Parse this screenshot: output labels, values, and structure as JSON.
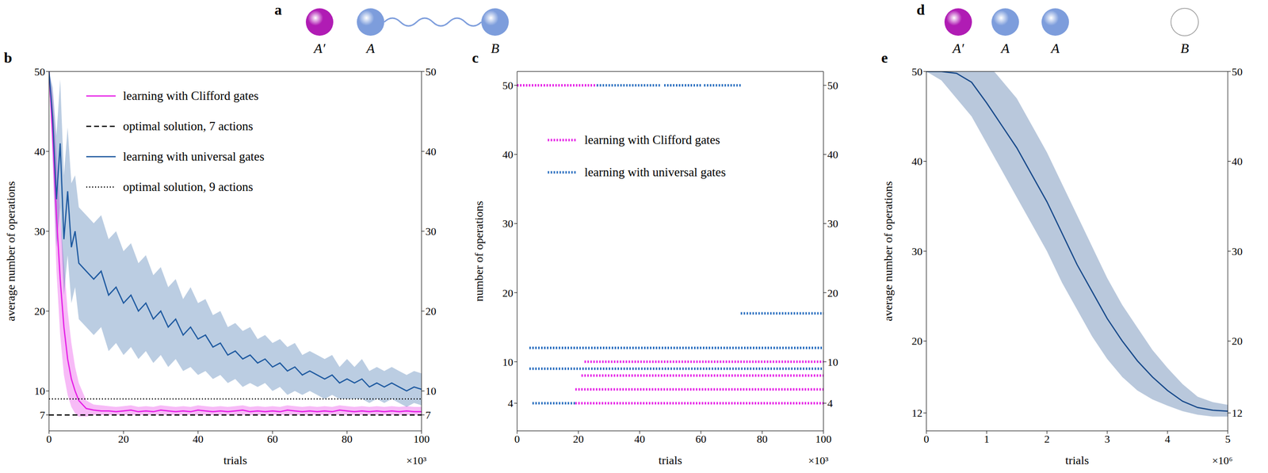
{
  "diagrams": [
    {
      "panel": "a",
      "nodes": [
        {
          "label": "A′",
          "color": "#b01cb4"
        },
        {
          "label": "A",
          "color": "#7d9ddc"
        },
        {
          "label": "B",
          "color": "#7d9ddc"
        }
      ],
      "links": [
        [
          1,
          2
        ]
      ]
    },
    {
      "panel": "d",
      "nodes": [
        {
          "label": "A′",
          "color": "#b01cb4"
        },
        {
          "label": "A",
          "color": "#7d9ddc"
        },
        {
          "label": "A",
          "color": "#7d9ddc"
        },
        {
          "label": "B",
          "color": "#ffffff"
        }
      ],
      "links": []
    }
  ],
  "chart_data": [
    {
      "panel": "b",
      "type": "line",
      "x_label": "trials",
      "x_multiplier": "×10³",
      "y_label": "average number of operations",
      "xlim": [
        0,
        100
      ],
      "xticks": [
        0,
        20,
        40,
        60,
        80,
        100
      ],
      "ylim": [
        5,
        50
      ],
      "yticks": [
        7,
        10,
        20,
        30,
        40,
        50
      ],
      "legend": "upper center",
      "x": [
        0,
        1,
        2,
        3,
        4,
        5,
        6,
        7,
        8,
        10,
        12,
        14,
        16,
        18,
        20,
        22,
        24,
        26,
        28,
        30,
        32,
        34,
        36,
        38,
        40,
        42,
        44,
        46,
        48,
        50,
        52,
        54,
        56,
        58,
        60,
        62,
        64,
        66,
        68,
        70,
        72,
        74,
        76,
        78,
        80,
        82,
        84,
        86,
        88,
        90,
        92,
        94,
        96,
        98,
        100
      ],
      "series": [
        {
          "name": "learning with Clifford gates",
          "color": "#e61ee6",
          "line_style": "solid",
          "values": [
            50,
            42,
            32,
            24,
            18,
            14,
            11.5,
            10,
            8.8,
            7.8,
            7.6,
            7.5,
            7.5,
            7.4,
            7.5,
            7.6,
            7.4,
            7.5,
            7.4,
            7.6,
            7.5,
            7.4,
            7.5,
            7.4,
            7.6,
            7.5,
            7.4,
            7.5,
            7.4,
            7.5,
            7.6,
            7.4,
            7.5,
            7.4,
            7.5,
            7.4,
            7.6,
            7.5,
            7.4,
            7.5,
            7.4,
            7.5,
            7.4,
            7.6,
            7.5,
            7.4,
            7.5,
            7.4,
            7.5,
            7.4,
            7.5,
            7.4,
            7.5,
            7.4,
            7.4
          ],
          "lower": [
            50,
            38,
            25,
            17,
            12,
            9.5,
            8,
            7.2,
            6.8,
            6.8,
            7,
            7,
            7,
            7,
            7,
            7,
            7,
            7,
            7,
            7,
            7,
            7,
            7,
            7,
            7,
            7,
            7,
            7,
            7,
            7,
            7,
            7,
            7,
            7,
            7,
            7,
            7,
            7,
            7,
            7,
            7,
            7,
            7,
            7,
            7,
            7,
            7,
            7,
            7,
            7,
            7,
            7,
            7,
            7,
            7
          ],
          "upper": [
            50,
            47,
            40,
            32,
            26,
            20,
            16,
            13,
            11,
            8.8,
            8.3,
            8.2,
            8.1,
            8,
            8.1,
            8.2,
            8,
            8.1,
            8,
            8.2,
            8.1,
            8,
            8.1,
            8,
            8.2,
            8.1,
            8,
            8.1,
            8,
            8.1,
            8.2,
            8,
            8.1,
            8,
            8.1,
            8,
            8.2,
            8.1,
            8,
            8.1,
            8,
            8.1,
            8,
            8.2,
            8.1,
            8,
            8.1,
            8,
            8.1,
            8,
            8.1,
            8,
            8.1,
            8,
            8
          ]
        },
        {
          "name": "optimal solution, 7 actions",
          "type": "reference",
          "y": 7,
          "color": "#000000",
          "line_style": "dashed"
        },
        {
          "name": "learning with universal gates",
          "color": "#1f5aa0",
          "line_style": "solid",
          "values": [
            50,
            44,
            34,
            41,
            29,
            35,
            28,
            30,
            26,
            25,
            24,
            25,
            22,
            23,
            21,
            22,
            20,
            21,
            19,
            20,
            18,
            19,
            17,
            18,
            16.5,
            17,
            15.5,
            16,
            14.5,
            15,
            14,
            14.5,
            13.5,
            14,
            13,
            13.5,
            12.5,
            13,
            12,
            12.5,
            12,
            11.5,
            12,
            11,
            11.5,
            11,
            11.5,
            10.5,
            11,
            10.5,
            11,
            10.5,
            10,
            10.5,
            10.2
          ],
          "lower": [
            50,
            40,
            28,
            33,
            22,
            27,
            21,
            23,
            19,
            18,
            17,
            18,
            15,
            16,
            14.5,
            15.5,
            14,
            15,
            13.5,
            14.5,
            13,
            14,
            12.5,
            13,
            12,
            12.5,
            11.5,
            12,
            11,
            11.5,
            10.5,
            11,
            10.5,
            11,
            10,
            10.5,
            9.5,
            10,
            9.5,
            10,
            9.5,
            9,
            9.5,
            9,
            9,
            9,
            9,
            8.5,
            9,
            8.5,
            9,
            8.5,
            8,
            8.5,
            8.2
          ],
          "upper": [
            50,
            48,
            42,
            49,
            37,
            43,
            36,
            37,
            33,
            32,
            31,
            32,
            29,
            30,
            27.5,
            28.5,
            26,
            27,
            24.5,
            25.5,
            23,
            24,
            21.5,
            23,
            21,
            21.5,
            19.5,
            20,
            18,
            18.5,
            17.5,
            18,
            16.5,
            17,
            16,
            16.5,
            15.5,
            16,
            14.5,
            15,
            14.5,
            14,
            14.5,
            13,
            14,
            13,
            14,
            12.5,
            13,
            12.5,
            13,
            12.5,
            12,
            12.5,
            12.2
          ]
        },
        {
          "name": "optimal solution, 9 actions",
          "type": "reference",
          "y": 9,
          "color": "#000000",
          "line_style": "dotted"
        }
      ]
    },
    {
      "panel": "c",
      "type": "scatter",
      "x_label": "trials",
      "x_multiplier": "×10³",
      "y_label": "number of operations",
      "xlim": [
        0,
        100
      ],
      "xticks": [
        0,
        20,
        40,
        60,
        80,
        100
      ],
      "ylim": [
        0,
        52
      ],
      "yticks": [
        4,
        10,
        20,
        30,
        40,
        50
      ],
      "legend": "upper center",
      "series": [
        {
          "name": "learning with Clifford gates",
          "color": "#e61ee6",
          "marker": "dot",
          "segments": [
            {
              "y": 50,
              "x": [
                0,
                26
              ]
            },
            {
              "y": 10,
              "x": [
                22,
                100
              ]
            },
            {
              "y": 8,
              "x": [
                21,
                100
              ]
            },
            {
              "y": 6,
              "x": [
                19,
                100
              ]
            },
            {
              "y": 4,
              "x": [
                19,
                100
              ]
            }
          ]
        },
        {
          "name": "learning with universal gates",
          "color": "#2a6fc0",
          "marker": "dot",
          "segments": [
            {
              "y": 50,
              "x": [
                26,
                47
              ]
            },
            {
              "y": 50,
              "x": [
                48,
                60
              ]
            },
            {
              "y": 50,
              "x": [
                61,
                73
              ]
            },
            {
              "y": 17,
              "x": [
                73,
                100
              ]
            },
            {
              "y": 12,
              "x": [
                4,
                100
              ]
            },
            {
              "y": 9,
              "x": [
                4,
                100
              ]
            },
            {
              "y": 4,
              "x": [
                5,
                19
              ]
            }
          ]
        }
      ]
    },
    {
      "panel": "e",
      "type": "line",
      "x_label": "trials",
      "x_multiplier": "×10⁶",
      "y_label": "average number of operations",
      "xlim": [
        0,
        5
      ],
      "xticks": [
        0,
        1,
        2,
        3,
        4,
        5
      ],
      "ylim": [
        10,
        50
      ],
      "yticks": [
        12,
        20,
        30,
        40,
        50
      ],
      "x": [
        0,
        0.25,
        0.5,
        0.75,
        1,
        1.25,
        1.5,
        1.75,
        2,
        2.25,
        2.5,
        2.75,
        3,
        3.25,
        3.5,
        3.75,
        4,
        4.25,
        4.5,
        4.75,
        5
      ],
      "series": [
        {
          "color": "#17498a",
          "line_style": "solid",
          "values": [
            50,
            50,
            49.8,
            48.8,
            46.5,
            44,
            41.5,
            38.5,
            35.5,
            32,
            28.5,
            25.5,
            22.5,
            20,
            17.8,
            16,
            14.5,
            13.3,
            12.6,
            12.3,
            12.2
          ],
          "lower": [
            50,
            49,
            47,
            45,
            42,
            39,
            36,
            33,
            30,
            26.5,
            23.5,
            20.5,
            18,
            16,
            14.5,
            13.5,
            12.8,
            12.2,
            11.8,
            11.6,
            11.6
          ],
          "upper": [
            50,
            50.5,
            51,
            51.5,
            51,
            49,
            47,
            44,
            41,
            37.5,
            34,
            30.5,
            27,
            24,
            21.5,
            19,
            17,
            15.2,
            13.8,
            13.2,
            12.9
          ]
        }
      ]
    }
  ]
}
